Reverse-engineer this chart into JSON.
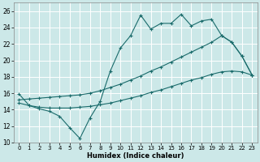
{
  "xlabel": "Humidex (Indice chaleur)",
  "bg_color": "#cce8e8",
  "grid_color": "#ffffff",
  "line_color": "#1a6b6b",
  "xlim": [
    -0.5,
    23.5
  ],
  "ylim": [
    10,
    27
  ],
  "xticks": [
    0,
    1,
    2,
    3,
    4,
    5,
    6,
    7,
    8,
    9,
    10,
    11,
    12,
    13,
    14,
    15,
    16,
    17,
    18,
    19,
    20,
    21,
    22,
    23
  ],
  "yticks": [
    10,
    12,
    14,
    16,
    18,
    20,
    22,
    24,
    26
  ],
  "line1_x": [
    0,
    1,
    2,
    3,
    4,
    5,
    6,
    7,
    8,
    9,
    10,
    11,
    12,
    13,
    14,
    15,
    16,
    17,
    18,
    19,
    20,
    21,
    22,
    23
  ],
  "line1_y": [
    15.9,
    14.5,
    14.1,
    13.8,
    13.2,
    11.8,
    10.5,
    13.0,
    15.0,
    18.7,
    21.5,
    23.0,
    25.5,
    23.8,
    24.5,
    24.5,
    25.6,
    24.2,
    24.8,
    25.0,
    23.0,
    22.2,
    20.5,
    18.2
  ],
  "line2_x": [
    0,
    1,
    2,
    3,
    4,
    5,
    6,
    7,
    8,
    9,
    10,
    11,
    12,
    13,
    14,
    15,
    16,
    17,
    18,
    19,
    20,
    21,
    22,
    23
  ],
  "line2_y": [
    15.2,
    15.3,
    15.4,
    15.5,
    15.6,
    15.7,
    15.8,
    16.0,
    16.3,
    16.7,
    17.1,
    17.6,
    18.1,
    18.7,
    19.2,
    19.8,
    20.4,
    21.0,
    21.6,
    22.2,
    23.0,
    22.2,
    20.5,
    18.2
  ],
  "line3_x": [
    0,
    1,
    2,
    3,
    4,
    5,
    6,
    7,
    8,
    9,
    10,
    11,
    12,
    13,
    14,
    15,
    16,
    17,
    18,
    19,
    20,
    21,
    22,
    23
  ],
  "line3_y": [
    14.8,
    14.5,
    14.3,
    14.2,
    14.2,
    14.2,
    14.3,
    14.4,
    14.6,
    14.8,
    15.1,
    15.4,
    15.7,
    16.1,
    16.4,
    16.8,
    17.2,
    17.6,
    17.9,
    18.3,
    18.6,
    18.7,
    18.6,
    18.2
  ]
}
